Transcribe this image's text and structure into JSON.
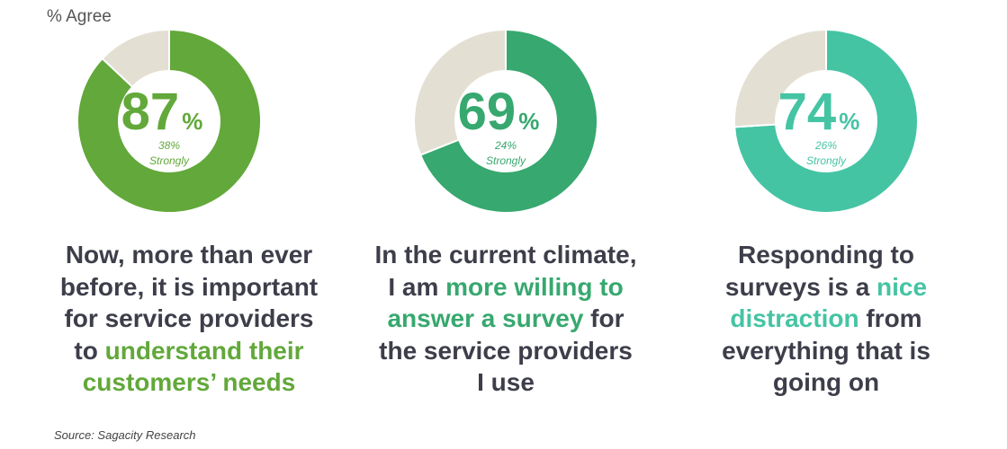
{
  "subtitle": "% Agree",
  "source": "Source: Sagacity Research",
  "colors": {
    "remainder": "#e3e0d3",
    "text": "#3d3e4a"
  },
  "chart_data": [
    {
      "type": "pie",
      "variant": "donut",
      "value": 87,
      "remainder": 13,
      "label": "87",
      "unit": "%",
      "sub_value": "38%",
      "sub_label": "Strongly",
      "color": "#62a83a",
      "caption": [
        [
          "Now, more than ever",
          ""
        ],
        [
          "before, it is important",
          ""
        ],
        [
          "for service providers",
          ""
        ],
        [
          "to ",
          "understand their"
        ],
        [
          "",
          "customers’ needs"
        ]
      ]
    },
    {
      "type": "pie",
      "variant": "donut",
      "value": 69,
      "remainder": 31,
      "label": "69",
      "unit": "%",
      "sub_value": "24%",
      "sub_label": "Strongly",
      "color": "#37a86f",
      "caption": [
        [
          "In the current climate,",
          ""
        ],
        [
          "I am ",
          "more willing to"
        ],
        [
          "",
          "answer a survey",
          " for"
        ],
        [
          "the service providers",
          ""
        ],
        [
          "I use",
          ""
        ]
      ]
    },
    {
      "type": "pie",
      "variant": "donut",
      "value": 74,
      "remainder": 26,
      "label": "74",
      "unit": "%",
      "sub_value": "26%",
      "sub_label": "Strongly",
      "color": "#45c4a4",
      "caption": [
        [
          "Responding to",
          ""
        ],
        [
          "surveys is a ",
          "nice"
        ],
        [
          "",
          "distraction",
          " from"
        ],
        [
          "everything that is",
          ""
        ],
        [
          "going on",
          ""
        ]
      ]
    }
  ]
}
